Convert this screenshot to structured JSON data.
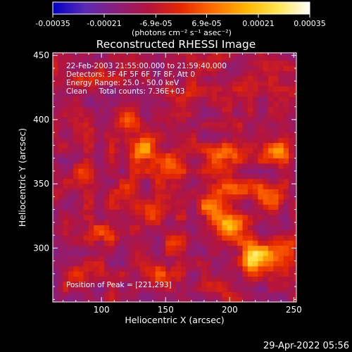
{
  "chart_data": {
    "type": "heatmap",
    "title": "Reconstructed RHESSI Image",
    "xlabel": "Heliocentric X (arcsec)",
    "ylabel": "Heliocentric Y (arcsec)",
    "xlim": [
      62,
      252
    ],
    "ylim": [
      258,
      452
    ],
    "xticks": [
      100,
      150,
      200,
      250
    ],
    "yticks": [
      300,
      350,
      400,
      450
    ],
    "colorbar": {
      "min": -0.00035,
      "max": 0.00035,
      "ticks": [
        "-0.00035",
        "-0.00021",
        "-6.9e-05",
        "6.9e-05",
        "0.00021",
        "0.00035"
      ],
      "unit_label": "(photons cm⁻² s⁻¹ asec⁻²)",
      "colors": [
        "#0000c8",
        "#5a2ab4",
        "#8c1e7a",
        "#b4143c",
        "#e62800",
        "#ff6e00",
        "#ffb400",
        "#ffe650",
        "#ffffff"
      ]
    },
    "annotations": {
      "line1": "22-Feb-2003 21:55:00.000 to 21:59:40.000",
      "line2": "Detectors: 3F 4F 5F 6F 7F 8F, Att 0",
      "line3": "Energy Range: 25.0 - 50.0 keV",
      "line4": "Clean     Total counts: 7.36E+03",
      "peak": "Position of Peak = [221,293]"
    },
    "grid": false,
    "sources": [
      {
        "x": 221,
        "y": 293,
        "flux": 0.00035,
        "sx": 9,
        "sy": 8
      },
      {
        "x": 200,
        "y": 318,
        "flux": 0.0003,
        "sx": 9,
        "sy": 7
      },
      {
        "x": 185,
        "y": 333,
        "flux": 0.0002,
        "sx": 7,
        "sy": 7
      },
      {
        "x": 205,
        "y": 347,
        "flux": 0.00022,
        "sx": 12,
        "sy": 5
      },
      {
        "x": 232,
        "y": 340,
        "flux": 0.00018,
        "sx": 8,
        "sy": 6
      },
      {
        "x": 195,
        "y": 372,
        "flux": 0.00021,
        "sx": 11,
        "sy": 6
      },
      {
        "x": 237,
        "y": 375,
        "flux": 0.00026,
        "sx": 7,
        "sy": 6
      },
      {
        "x": 132,
        "y": 378,
        "flux": 0.00027,
        "sx": 8,
        "sy": 8
      },
      {
        "x": 118,
        "y": 402,
        "flux": 0.00019,
        "sx": 6,
        "sy": 6
      },
      {
        "x": 88,
        "y": 360,
        "flux": 0.00021,
        "sx": 5,
        "sy": 5
      },
      {
        "x": 155,
        "y": 365,
        "flux": 0.00016,
        "sx": 9,
        "sy": 7
      },
      {
        "x": 100,
        "y": 312,
        "flux": 0.00017,
        "sx": 8,
        "sy": 5
      },
      {
        "x": 140,
        "y": 325,
        "flux": 0.00018,
        "sx": 7,
        "sy": 6
      },
      {
        "x": 160,
        "y": 305,
        "flux": 0.00012,
        "sx": 6,
        "sy": 6
      },
      {
        "x": 150,
        "y": 280,
        "flux": 0.00015,
        "sx": 8,
        "sy": 5
      },
      {
        "x": 80,
        "y": 280,
        "flux": 0.00012,
        "sx": 6,
        "sy": 6
      },
      {
        "x": 190,
        "y": 270,
        "flux": 0.00013,
        "sx": 9,
        "sy": 5
      },
      {
        "x": 165,
        "y": 420,
        "flux": 0.00011,
        "sx": 8,
        "sy": 6
      },
      {
        "x": 215,
        "y": 430,
        "flux": 0.0001,
        "sx": 8,
        "sy": 6
      },
      {
        "x": 90,
        "y": 430,
        "flux": 0.00012,
        "sx": 7,
        "sy": 6
      },
      {
        "x": 245,
        "y": 300,
        "flux": 0.00015,
        "sx": 5,
        "sy": 6
      },
      {
        "x": 120,
        "y": 345,
        "flux": 0.0001,
        "sx": 7,
        "sy": 6
      }
    ]
  },
  "timestamp": "29-Apr-2022 05:56"
}
